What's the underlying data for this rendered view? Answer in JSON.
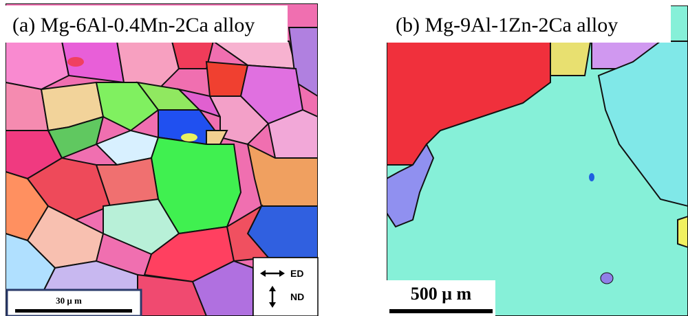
{
  "panels": [
    {
      "label": "(a) Mg-6Al-0.4Mn-2Ca alloy",
      "scale_bar": "30 μ m",
      "legend": [
        "ED",
        "ND"
      ]
    },
    {
      "label": "(b) Mg-9Al-1Zn-2Ca alloy",
      "scale_bar": "500 μ m"
    }
  ]
}
